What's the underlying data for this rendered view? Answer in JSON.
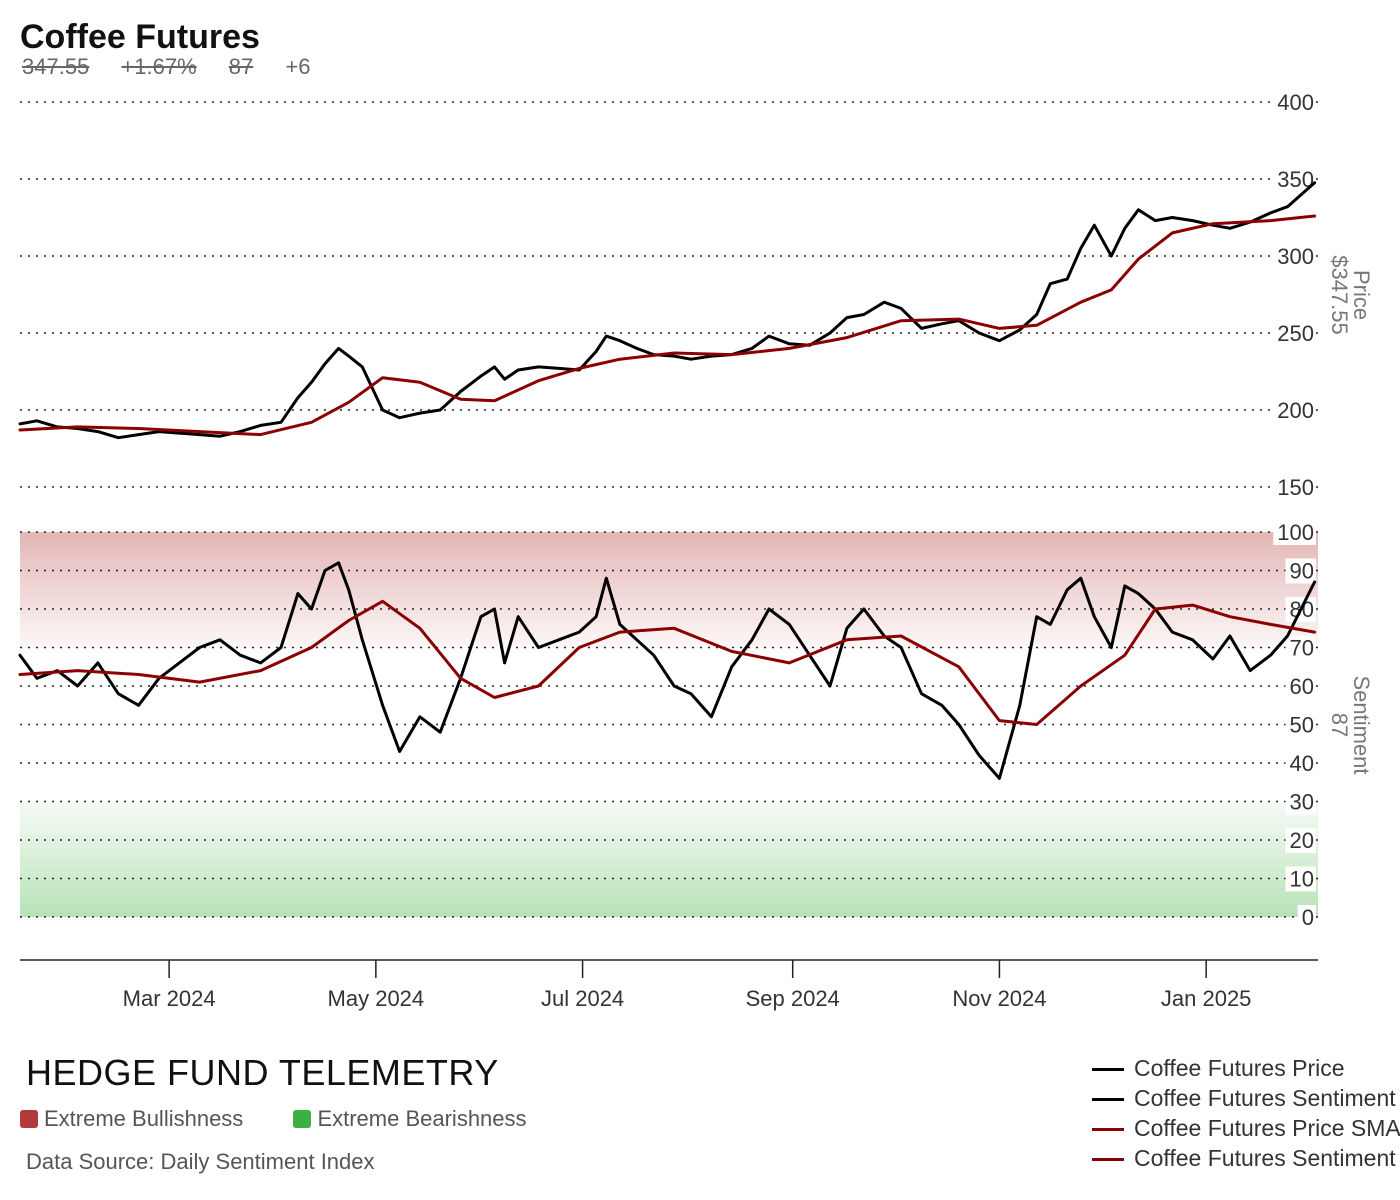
{
  "header": {
    "title": "Coffee Futures",
    "last_price": "347.55",
    "change_pct": "+1.67%",
    "sentiment_value": "87",
    "sentiment_change": "+6"
  },
  "brand": "HEDGE FUND TELEMETRY",
  "zones": {
    "bullish": {
      "label": "Extreme Bullishness",
      "color": "#b33a3a"
    },
    "bearish": {
      "label": "Extreme Bearishness",
      "color": "#3cb043"
    }
  },
  "source": "Data Source: Daily Sentiment Index",
  "legend": [
    {
      "label": "Coffee Futures Price",
      "color": "#000000"
    },
    {
      "label": "Coffee Futures Sentiment",
      "color": "#000000"
    },
    {
      "label": "Coffee Futures Price SMA",
      "color": "#8b0000"
    },
    {
      "label": "Coffee Futures Sentiment SMA",
      "color": "#8b0000"
    }
  ],
  "axes": {
    "price_title": "Price",
    "price_value": "$347.55",
    "sentiment_title": "Sentiment",
    "sentiment_value": "87"
  },
  "chart_data": {
    "type": "line",
    "x_range": [
      "2024-01-17",
      "2025-02-03"
    ],
    "x_ticks": [
      {
        "date": "2024-03-01",
        "label": "Mar 2024"
      },
      {
        "date": "2024-05-01",
        "label": "May 2024"
      },
      {
        "date": "2024-07-01",
        "label": "Jul 2024"
      },
      {
        "date": "2024-09-01",
        "label": "Sep 2024"
      },
      {
        "date": "2024-11-01",
        "label": "Nov 2024"
      },
      {
        "date": "2025-01-01",
        "label": "Jan 2025"
      }
    ],
    "price_panel": {
      "ylim": [
        150,
        400
      ],
      "ticks": [
        150,
        200,
        250,
        300,
        350,
        400
      ],
      "grid": true,
      "series": [
        {
          "name": "Coffee Futures Price",
          "color": "#000000",
          "points": [
            [
              "2024-01-17",
              191
            ],
            [
              "2024-01-22",
              193
            ],
            [
              "2024-01-28",
              189
            ],
            [
              "2024-02-03",
              188
            ],
            [
              "2024-02-09",
              186
            ],
            [
              "2024-02-15",
              182
            ],
            [
              "2024-02-21",
              184
            ],
            [
              "2024-02-27",
              186
            ],
            [
              "2024-03-04",
              185
            ],
            [
              "2024-03-10",
              184
            ],
            [
              "2024-03-16",
              183
            ],
            [
              "2024-03-22",
              186
            ],
            [
              "2024-03-28",
              190
            ],
            [
              "2024-04-03",
              192
            ],
            [
              "2024-04-08",
              208
            ],
            [
              "2024-04-12",
              218
            ],
            [
              "2024-04-16",
              230
            ],
            [
              "2024-04-20",
              240
            ],
            [
              "2024-04-23",
              235
            ],
            [
              "2024-04-27",
              228
            ],
            [
              "2024-05-03",
              200
            ],
            [
              "2024-05-08",
              195
            ],
            [
              "2024-05-14",
              198
            ],
            [
              "2024-05-20",
              200
            ],
            [
              "2024-05-26",
              212
            ],
            [
              "2024-06-01",
              222
            ],
            [
              "2024-06-05",
              228
            ],
            [
              "2024-06-08",
              220
            ],
            [
              "2024-06-12",
              226
            ],
            [
              "2024-06-18",
              228
            ],
            [
              "2024-06-24",
              227
            ],
            [
              "2024-06-30",
              226
            ],
            [
              "2024-07-05",
              238
            ],
            [
              "2024-07-08",
              248
            ],
            [
              "2024-07-12",
              245
            ],
            [
              "2024-07-17",
              240
            ],
            [
              "2024-07-22",
              236
            ],
            [
              "2024-07-28",
              235
            ],
            [
              "2024-08-02",
              233
            ],
            [
              "2024-08-08",
              235
            ],
            [
              "2024-08-14",
              236
            ],
            [
              "2024-08-20",
              240
            ],
            [
              "2024-08-25",
              248
            ],
            [
              "2024-08-31",
              243
            ],
            [
              "2024-09-06",
              242
            ],
            [
              "2024-09-12",
              250
            ],
            [
              "2024-09-17",
              260
            ],
            [
              "2024-09-22",
              262
            ],
            [
              "2024-09-28",
              270
            ],
            [
              "2024-10-03",
              266
            ],
            [
              "2024-10-09",
              253
            ],
            [
              "2024-10-15",
              256
            ],
            [
              "2024-10-20",
              258
            ],
            [
              "2024-10-26",
              250
            ],
            [
              "2024-11-01",
              245
            ],
            [
              "2024-11-07",
              252
            ],
            [
              "2024-11-12",
              262
            ],
            [
              "2024-11-16",
              282
            ],
            [
              "2024-11-21",
              285
            ],
            [
              "2024-11-25",
              305
            ],
            [
              "2024-11-29",
              320
            ],
            [
              "2024-12-04",
              300
            ],
            [
              "2024-12-08",
              318
            ],
            [
              "2024-12-12",
              330
            ],
            [
              "2024-12-17",
              323
            ],
            [
              "2024-12-22",
              325
            ],
            [
              "2024-12-28",
              323
            ],
            [
              "2025-01-03",
              320
            ],
            [
              "2025-01-08",
              318
            ],
            [
              "2025-01-14",
              322
            ],
            [
              "2025-01-20",
              328
            ],
            [
              "2025-01-25",
              332
            ],
            [
              "2025-02-02",
              347.55
            ]
          ]
        },
        {
          "name": "Coffee Futures Price SMA",
          "color": "#8b0000",
          "points": [
            [
              "2024-01-17",
              187
            ],
            [
              "2024-02-03",
              189
            ],
            [
              "2024-02-21",
              188
            ],
            [
              "2024-03-10",
              186
            ],
            [
              "2024-03-28",
              184
            ],
            [
              "2024-04-12",
              192
            ],
            [
              "2024-04-23",
              205
            ],
            [
              "2024-05-03",
              221
            ],
            [
              "2024-05-14",
              218
            ],
            [
              "2024-05-26",
              207
            ],
            [
              "2024-06-05",
              206
            ],
            [
              "2024-06-18",
              219
            ],
            [
              "2024-06-30",
              227
            ],
            [
              "2024-07-12",
              233
            ],
            [
              "2024-07-28",
              237
            ],
            [
              "2024-08-14",
              236
            ],
            [
              "2024-08-31",
              240
            ],
            [
              "2024-09-17",
              247
            ],
            [
              "2024-10-03",
              258
            ],
            [
              "2024-10-20",
              259
            ],
            [
              "2024-11-01",
              253
            ],
            [
              "2024-11-12",
              255
            ],
            [
              "2024-11-25",
              270
            ],
            [
              "2024-12-04",
              278
            ],
            [
              "2024-12-12",
              298
            ],
            [
              "2024-12-22",
              315
            ],
            [
              "2025-01-03",
              321
            ],
            [
              "2025-01-20",
              323
            ],
            [
              "2025-02-02",
              326
            ]
          ]
        }
      ]
    },
    "sentiment_panel": {
      "ylim": [
        0,
        100
      ],
      "ticks": [
        0,
        10,
        20,
        30,
        40,
        50,
        60,
        70,
        80,
        90,
        100
      ],
      "grid": true,
      "bands": [
        {
          "label": "Extreme Bullishness",
          "from": 70,
          "to": 100,
          "color": "#c96a6a"
        },
        {
          "label": "Extreme Bearishness",
          "from": 0,
          "to": 30,
          "color": "#5fbf5f"
        }
      ],
      "series": [
        {
          "name": "Coffee Futures Sentiment",
          "color": "#000000",
          "points": [
            [
              "2024-01-17",
              68
            ],
            [
              "2024-01-22",
              62
            ],
            [
              "2024-01-28",
              64
            ],
            [
              "2024-02-03",
              60
            ],
            [
              "2024-02-09",
              66
            ],
            [
              "2024-02-15",
              58
            ],
            [
              "2024-02-21",
              55
            ],
            [
              "2024-02-27",
              62
            ],
            [
              "2024-03-04",
              66
            ],
            [
              "2024-03-10",
              70
            ],
            [
              "2024-03-16",
              72
            ],
            [
              "2024-03-22",
              68
            ],
            [
              "2024-03-28",
              66
            ],
            [
              "2024-04-03",
              70
            ],
            [
              "2024-04-08",
              84
            ],
            [
              "2024-04-12",
              80
            ],
            [
              "2024-04-16",
              90
            ],
            [
              "2024-04-20",
              92
            ],
            [
              "2024-04-23",
              85
            ],
            [
              "2024-04-27",
              72
            ],
            [
              "2024-05-03",
              55
            ],
            [
              "2024-05-08",
              43
            ],
            [
              "2024-05-14",
              52
            ],
            [
              "2024-05-20",
              48
            ],
            [
              "2024-05-26",
              62
            ],
            [
              "2024-06-01",
              78
            ],
            [
              "2024-06-05",
              80
            ],
            [
              "2024-06-08",
              66
            ],
            [
              "2024-06-12",
              78
            ],
            [
              "2024-06-18",
              70
            ],
            [
              "2024-06-24",
              72
            ],
            [
              "2024-06-30",
              74
            ],
            [
              "2024-07-05",
              78
            ],
            [
              "2024-07-08",
              88
            ],
            [
              "2024-07-12",
              76
            ],
            [
              "2024-07-17",
              72
            ],
            [
              "2024-07-22",
              68
            ],
            [
              "2024-07-28",
              60
            ],
            [
              "2024-08-02",
              58
            ],
            [
              "2024-08-08",
              52
            ],
            [
              "2024-08-14",
              65
            ],
            [
              "2024-08-20",
              72
            ],
            [
              "2024-08-25",
              80
            ],
            [
              "2024-08-31",
              76
            ],
            [
              "2024-09-06",
              68
            ],
            [
              "2024-09-12",
              60
            ],
            [
              "2024-09-17",
              75
            ],
            [
              "2024-09-22",
              80
            ],
            [
              "2024-09-28",
              73
            ],
            [
              "2024-10-03",
              70
            ],
            [
              "2024-10-09",
              58
            ],
            [
              "2024-10-15",
              55
            ],
            [
              "2024-10-20",
              50
            ],
            [
              "2024-10-26",
              42
            ],
            [
              "2024-11-01",
              36
            ],
            [
              "2024-11-07",
              55
            ],
            [
              "2024-11-12",
              78
            ],
            [
              "2024-11-16",
              76
            ],
            [
              "2024-11-21",
              85
            ],
            [
              "2024-11-25",
              88
            ],
            [
              "2024-11-29",
              78
            ],
            [
              "2024-12-04",
              70
            ],
            [
              "2024-12-08",
              86
            ],
            [
              "2024-12-12",
              84
            ],
            [
              "2024-12-17",
              80
            ],
            [
              "2024-12-22",
              74
            ],
            [
              "2024-12-28",
              72
            ],
            [
              "2025-01-03",
              67
            ],
            [
              "2025-01-08",
              73
            ],
            [
              "2025-01-14",
              64
            ],
            [
              "2025-01-20",
              68
            ],
            [
              "2025-01-25",
              73
            ],
            [
              "2025-02-02",
              87
            ]
          ]
        },
        {
          "name": "Coffee Futures Sentiment SMA",
          "color": "#8b0000",
          "points": [
            [
              "2024-01-17",
              63
            ],
            [
              "2024-02-03",
              64
            ],
            [
              "2024-02-21",
              63
            ],
            [
              "2024-03-10",
              61
            ],
            [
              "2024-03-28",
              64
            ],
            [
              "2024-04-12",
              70
            ],
            [
              "2024-04-23",
              77
            ],
            [
              "2024-05-03",
              82
            ],
            [
              "2024-05-14",
              75
            ],
            [
              "2024-05-26",
              62
            ],
            [
              "2024-06-05",
              57
            ],
            [
              "2024-06-18",
              60
            ],
            [
              "2024-06-30",
              70
            ],
            [
              "2024-07-12",
              74
            ],
            [
              "2024-07-28",
              75
            ],
            [
              "2024-08-14",
              69
            ],
            [
              "2024-08-31",
              66
            ],
            [
              "2024-09-17",
              72
            ],
            [
              "2024-10-03",
              73
            ],
            [
              "2024-10-20",
              65
            ],
            [
              "2024-11-01",
              51
            ],
            [
              "2024-11-12",
              50
            ],
            [
              "2024-11-25",
              60
            ],
            [
              "2024-12-08",
              68
            ],
            [
              "2024-12-17",
              80
            ],
            [
              "2024-12-28",
              81
            ],
            [
              "2025-01-08",
              78
            ],
            [
              "2025-01-20",
              76
            ],
            [
              "2025-02-02",
              74
            ]
          ]
        }
      ]
    }
  }
}
